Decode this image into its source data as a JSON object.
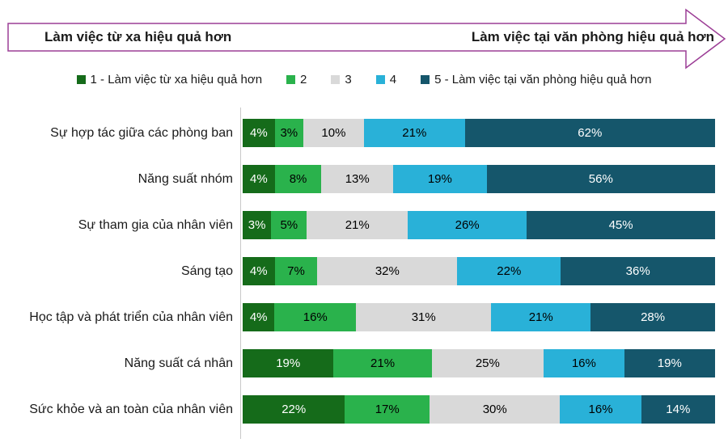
{
  "banner": {
    "left_label": "Làm việc từ xa hiệu quả hơn",
    "right_label": "Làm việc tại văn phòng hiệu quả hơn",
    "border_color": "#9c3e96"
  },
  "legend": {
    "items": [
      {
        "label": "1 - Làm việc từ xa hiệu quả hơn",
        "color": "#156b1a"
      },
      {
        "label": "2",
        "color": "#2ab24c"
      },
      {
        "label": "3",
        "color": "#d9d9d9"
      },
      {
        "label": "4",
        "color": "#29b1d8"
      },
      {
        "label": "5 - Làm việc tại văn phòng hiệu quả hơn",
        "color": "#15566b"
      }
    ]
  },
  "chart_data": {
    "type": "bar",
    "orientation": "horizontal-stacked",
    "unit": "%",
    "xlim": [
      0,
      100
    ],
    "grid": false,
    "legend_position": "top",
    "categories": [
      "Sự hợp tác giữa các phòng ban",
      "Năng suất nhóm",
      "Sự tham gia của nhân viên",
      "Sáng tạo",
      "Học tập và phát triển của nhân viên",
      "Năng suất cá nhân",
      "Sức khỏe và an toàn của nhân viên"
    ],
    "series": [
      {
        "name": "1 - Làm việc từ xa hiệu quả hơn",
        "color": "#156b1a",
        "text_color": "#ffffff",
        "values": [
          4,
          4,
          3,
          4,
          4,
          19,
          22
        ]
      },
      {
        "name": "2",
        "color": "#2ab24c",
        "text_color": "#000000",
        "values": [
          3,
          8,
          5,
          7,
          16,
          21,
          17
        ]
      },
      {
        "name": "3",
        "color": "#d9d9d9",
        "text_color": "#000000",
        "values": [
          10,
          13,
          21,
          32,
          31,
          25,
          30
        ]
      },
      {
        "name": "4",
        "color": "#29b1d8",
        "text_color": "#000000",
        "values": [
          21,
          19,
          26,
          22,
          21,
          16,
          16
        ]
      },
      {
        "name": "5 - Làm việc tại văn phòng hiệu quả hơn",
        "color": "#15566b",
        "text_color": "#ffffff",
        "values": [
          62,
          56,
          45,
          36,
          28,
          19,
          14
        ]
      }
    ]
  }
}
